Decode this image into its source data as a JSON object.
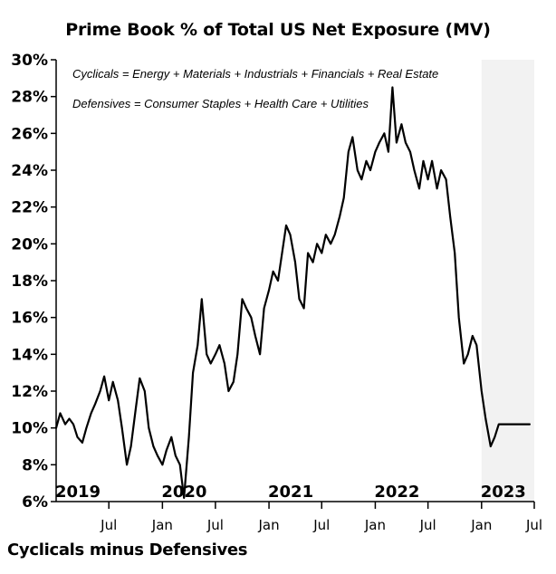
{
  "chart_data": {
    "type": "line",
    "title": "Prime Book % of Total US Net Exposure (MV)",
    "xlabel": "Cyclicals minus Defensives",
    "ylabel": "",
    "ylim": [
      6,
      30
    ],
    "y_ticks": [
      6,
      8,
      10,
      12,
      14,
      16,
      18,
      20,
      22,
      24,
      26,
      28,
      30
    ],
    "y_tick_labels": [
      "6%",
      "8%",
      "10%",
      "12%",
      "14%",
      "16%",
      "18%",
      "20%",
      "22%",
      "24%",
      "26%",
      "28%",
      "30%"
    ],
    "xlim": [
      "2019-01-01",
      "2023-07-01"
    ],
    "x_month_ticks": [
      {
        "date": "2019-07-01",
        "label": "Jul"
      },
      {
        "date": "2020-01-01",
        "label": "Jan"
      },
      {
        "date": "2020-07-01",
        "label": "Jul"
      },
      {
        "date": "2021-01-01",
        "label": "Jan"
      },
      {
        "date": "2021-07-01",
        "label": "Jul"
      },
      {
        "date": "2022-01-01",
        "label": "Jan"
      },
      {
        "date": "2022-07-01",
        "label": "Jul"
      },
      {
        "date": "2023-01-01",
        "label": "Jan"
      },
      {
        "date": "2023-07-01",
        "label": "Jul"
      }
    ],
    "year_labels": [
      {
        "date": "2019-01-01",
        "label": "2019"
      },
      {
        "date": "2020-01-01",
        "label": "2020"
      },
      {
        "date": "2021-01-01",
        "label": "2021"
      },
      {
        "date": "2022-01-01",
        "label": "2022"
      },
      {
        "date": "2023-01-01",
        "label": "2023"
      }
    ],
    "annotations": [
      "Cyclicals = Energy + Materials + Industrials + Financials + Real Estate",
      "Defensives = Consumer Staples + Health Care + Utilities"
    ],
    "shaded_region": {
      "from": "2023-01-01",
      "to": "2023-07-01",
      "color": "#f2f2f2"
    },
    "grid": false,
    "series": [
      {
        "color": "#000000",
        "x": [
          "2019-01-01",
          "2019-01-15",
          "2019-02-01",
          "2019-02-15",
          "2019-03-01",
          "2019-03-15",
          "2019-04-01",
          "2019-04-15",
          "2019-05-01",
          "2019-05-15",
          "2019-06-01",
          "2019-06-15",
          "2019-07-01",
          "2019-07-15",
          "2019-08-01",
          "2019-08-15",
          "2019-09-01",
          "2019-09-15",
          "2019-10-01",
          "2019-10-15",
          "2019-11-01",
          "2019-11-15",
          "2019-12-01",
          "2019-12-15",
          "2020-01-01",
          "2020-01-15",
          "2020-02-01",
          "2020-02-15",
          "2020-03-01",
          "2020-03-15",
          "2020-04-01",
          "2020-04-15",
          "2020-05-01",
          "2020-05-15",
          "2020-06-01",
          "2020-06-15",
          "2020-07-01",
          "2020-07-15",
          "2020-08-01",
          "2020-08-15",
          "2020-09-01",
          "2020-09-15",
          "2020-10-01",
          "2020-10-15",
          "2020-11-01",
          "2020-11-15",
          "2020-12-01",
          "2020-12-15",
          "2021-01-01",
          "2021-01-15",
          "2021-02-01",
          "2021-02-15",
          "2021-03-01",
          "2021-03-15",
          "2021-04-01",
          "2021-04-15",
          "2021-05-01",
          "2021-05-15",
          "2021-06-01",
          "2021-06-15",
          "2021-07-01",
          "2021-07-15",
          "2021-08-01",
          "2021-08-15",
          "2021-09-01",
          "2021-09-15",
          "2021-10-01",
          "2021-10-15",
          "2021-11-01",
          "2021-11-15",
          "2021-12-01",
          "2021-12-15",
          "2022-01-01",
          "2022-01-15",
          "2022-02-01",
          "2022-02-15",
          "2022-03-01",
          "2022-03-15",
          "2022-04-01",
          "2022-04-15",
          "2022-05-01",
          "2022-05-15",
          "2022-06-01",
          "2022-06-15",
          "2022-07-01",
          "2022-07-15",
          "2022-08-01",
          "2022-08-15",
          "2022-09-01",
          "2022-09-15",
          "2022-10-01",
          "2022-10-15",
          "2022-11-01",
          "2022-11-15",
          "2022-12-01",
          "2022-12-15",
          "2023-01-01",
          "2023-01-15",
          "2023-02-01",
          "2023-02-15",
          "2023-03-01",
          "2023-03-15",
          "2023-04-01",
          "2023-04-15",
          "2023-05-01",
          "2023-05-15",
          "2023-06-01",
          "2023-06-15"
        ],
        "values": [
          10.0,
          10.8,
          10.2,
          10.5,
          10.2,
          9.5,
          9.2,
          10.0,
          10.8,
          11.3,
          12.0,
          12.8,
          11.5,
          12.5,
          11.5,
          10.0,
          8.0,
          9.0,
          11.0,
          12.7,
          12.0,
          10.0,
          9.0,
          8.5,
          8.0,
          8.8,
          9.5,
          8.5,
          8.0,
          6.2,
          9.5,
          13.0,
          14.5,
          17.0,
          14.0,
          13.5,
          14.0,
          14.5,
          13.5,
          12.0,
          12.5,
          14.0,
          17.0,
          16.5,
          16.0,
          15.0,
          14.0,
          16.5,
          17.5,
          18.5,
          18.0,
          19.5,
          21.0,
          20.5,
          19.0,
          17.0,
          16.5,
          19.5,
          19.0,
          20.0,
          19.5,
          20.5,
          20.0,
          20.5,
          21.5,
          22.5,
          25.0,
          25.8,
          24.0,
          23.5,
          24.5,
          24.0,
          25.0,
          25.5,
          26.0,
          25.0,
          28.5,
          25.5,
          26.5,
          25.5,
          25.0,
          24.0,
          23.0,
          24.5,
          23.5,
          24.5,
          23.0,
          24.0,
          23.5,
          21.5,
          19.5,
          16.0,
          13.5,
          14.0,
          15.0,
          14.5,
          12.0,
          10.5,
          9.0,
          9.5,
          10.2,
          10.2,
          10.2,
          10.2,
          10.2,
          10.2,
          10.2,
          10.2
        ],
        "name": ""
      }
    ]
  },
  "footer": {
    "label": "Cyclicals minus Defensives"
  }
}
